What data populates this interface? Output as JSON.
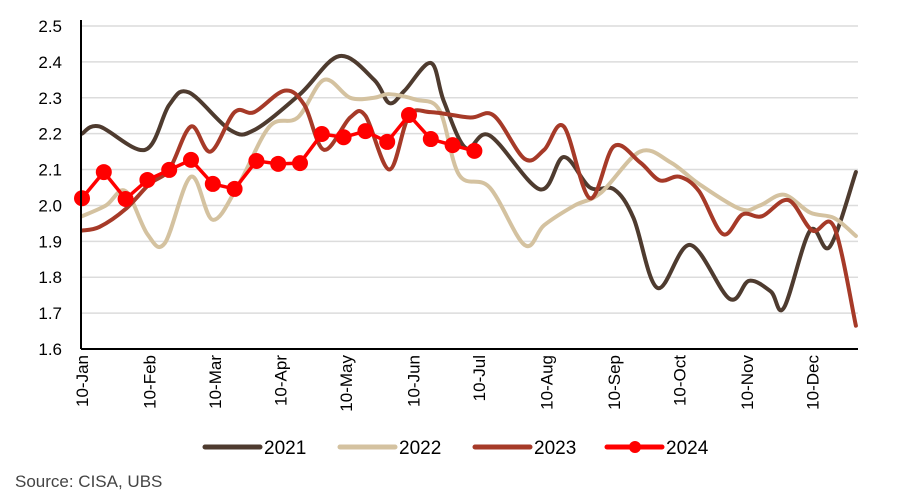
{
  "chart_data": {
    "type": "line",
    "title": "",
    "xlabel": "",
    "ylabel": "",
    "x_unit": "days since 10-Jan",
    "xlim": [
      0,
      356
    ],
    "ylim": [
      1.6,
      2.5
    ],
    "yticks": [
      1.6,
      1.7,
      1.8,
      1.9,
      2.0,
      2.1,
      2.2,
      2.3,
      2.4,
      2.5
    ],
    "ytick_labels": [
      "1.6",
      "1.7",
      "1.8",
      "1.9",
      "2.0",
      "2.1",
      "2.2",
      "2.3",
      "2.4",
      "2.5"
    ],
    "xticks": [
      0,
      31,
      61,
      91,
      121,
      152,
      182,
      213,
      244,
      274,
      305,
      335
    ],
    "xtick_labels": [
      "10-Jan",
      "10-Feb",
      "10-Mar",
      "10-Apr",
      "10-May",
      "10-Jun",
      "10-Jul",
      "10-Aug",
      "10-Sep",
      "10-Oct",
      "10-Nov",
      "10-Dec"
    ],
    "grid": "horizontal",
    "legend_position": "bottom",
    "series": [
      {
        "name": "2021",
        "color": "#4e3b2f",
        "markers": false,
        "x": [
          0,
          8,
          29,
          40,
          49,
          68,
          79,
          100,
          118,
          134,
          141,
          148,
          160,
          166,
          176,
          187,
          210,
          221,
          233,
          244,
          253,
          264,
          279,
          297,
          306,
          316,
          322,
          334,
          343,
          355
        ],
        "y": [
          2.2,
          2.22,
          2.155,
          2.28,
          2.315,
          2.21,
          2.21,
          2.31,
          2.416,
          2.35,
          2.285,
          2.32,
          2.397,
          2.29,
          2.16,
          2.195,
          2.045,
          2.135,
          2.05,
          2.045,
          1.965,
          1.77,
          1.89,
          1.74,
          1.79,
          1.76,
          1.715,
          1.93,
          1.885,
          2.093
        ]
      },
      {
        "name": "2022",
        "color": "#d4c2a0",
        "markers": false,
        "x": [
          0,
          11,
          20,
          30,
          38,
          50,
          60,
          72,
          86,
          99,
          111,
          123,
          134,
          141,
          153,
          164,
          173,
          187,
          203,
          212,
          226,
          238,
          256,
          270,
          283,
          302,
          311,
          322,
          334,
          345,
          355
        ],
        "y": [
          1.97,
          2.0,
          2.04,
          1.92,
          1.895,
          2.08,
          1.96,
          2.06,
          2.22,
          2.245,
          2.35,
          2.3,
          2.3,
          2.31,
          2.295,
          2.265,
          2.085,
          2.05,
          1.89,
          1.945,
          2.0,
          2.035,
          2.15,
          2.12,
          2.06,
          1.99,
          2.0,
          2.03,
          1.98,
          1.965,
          1.915
        ]
      },
      {
        "name": "2023",
        "color": "#a63a28",
        "markers": false,
        "x": [
          0,
          8,
          20,
          31,
          40,
          50,
          59,
          70,
          79,
          93,
          102,
          111,
          123,
          130,
          141,
          150,
          160,
          178,
          189,
          203,
          212,
          221,
          233,
          244,
          256,
          265,
          274,
          283,
          294,
          303,
          312,
          324,
          335,
          345,
          355
        ],
        "y": [
          1.93,
          1.94,
          1.99,
          2.06,
          2.1,
          2.22,
          2.15,
          2.26,
          2.26,
          2.32,
          2.28,
          2.155,
          2.245,
          2.25,
          2.1,
          2.25,
          2.26,
          2.245,
          2.25,
          2.13,
          2.155,
          2.22,
          2.02,
          2.165,
          2.12,
          2.07,
          2.08,
          2.04,
          1.92,
          1.975,
          1.97,
          2.015,
          1.93,
          1.94,
          1.665
        ]
      },
      {
        "name": "2024",
        "color": "#ff0000",
        "markers": true,
        "x": [
          0,
          10,
          20,
          30,
          40,
          50,
          60,
          70,
          80,
          90,
          100,
          110,
          120,
          130,
          140,
          150,
          160,
          170,
          180
        ],
        "y": [
          2.02,
          2.093,
          2.018,
          2.071,
          2.099,
          2.127,
          2.06,
          2.046,
          2.124,
          2.116,
          2.118,
          2.199,
          2.19,
          2.207,
          2.177,
          2.252,
          2.185,
          2.168,
          2.152
        ]
      }
    ]
  },
  "source": "Source: CISA, UBS"
}
